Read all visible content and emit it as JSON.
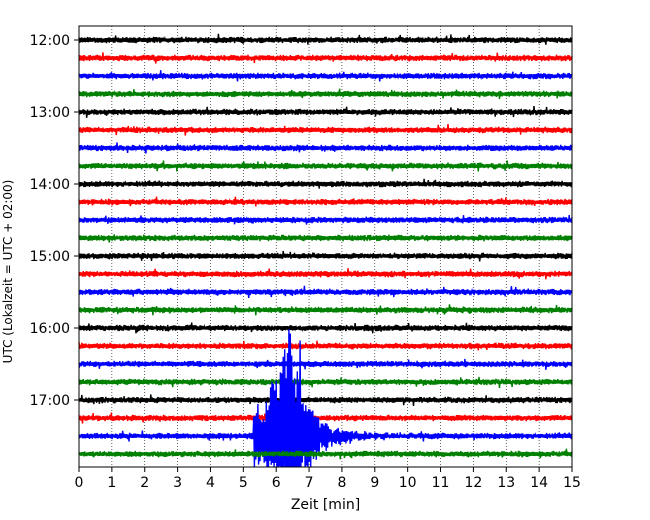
{
  "chart_data": {
    "type": "line",
    "title": "",
    "xlabel": "Zeit  [min]",
    "ylabel": "UTC (Lokalzeit = UTC + 02:00)",
    "xlim": [
      0,
      15
    ],
    "x_ticks": [
      0,
      1,
      2,
      3,
      4,
      5,
      6,
      7,
      8,
      9,
      10,
      11,
      12,
      13,
      14,
      15
    ],
    "x_tick_labels": [
      "0",
      "1",
      "2",
      "3",
      "4",
      "5",
      "6",
      "7",
      "8",
      "9",
      "10",
      "11",
      "12",
      "13",
      "14",
      "15"
    ],
    "y_tick_labels": [
      "12:00",
      "13:00",
      "14:00",
      "15:00",
      "16:00",
      "17:00"
    ],
    "y_tick_rows": [
      0,
      4,
      8,
      12,
      16,
      20
    ],
    "grid": "vertical-dotted",
    "trace_colors": [
      "#000000",
      "#ff0000",
      "#0000ff",
      "#008000"
    ],
    "traces_count": 24,
    "minutes_per_row": 15,
    "event": {
      "row": 22,
      "start_min": 5.3,
      "peak_min": 6.35,
      "end_min": 9.8,
      "peak_row": 7.3
    }
  }
}
